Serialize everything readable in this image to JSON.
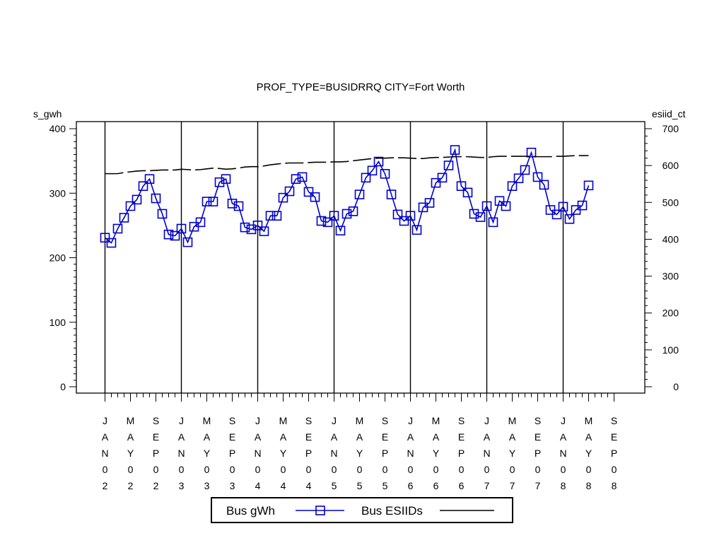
{
  "chart_data": {
    "type": "line",
    "title": "PROF_TYPE=BUSIDRRQ CITY=Fort Worth",
    "ylabel_left": "s_gwh",
    "ylabel_right": "esiid_ct",
    "ylim_left": [
      0,
      400
    ],
    "yticks_left": [
      0,
      100,
      200,
      300,
      400
    ],
    "ylim_right": [
      0,
      700
    ],
    "yticks_right": [
      0,
      100,
      200,
      300,
      400,
      500,
      600,
      700
    ],
    "x_start": "2002-01",
    "x_end": "2008-09",
    "x_tick_labels": [
      "JAN02",
      "MAY02",
      "SEP02",
      "JAN03",
      "MAY03",
      "SEP03",
      "JAN04",
      "MAY04",
      "SEP04",
      "JAN05",
      "MAY05",
      "SEP05",
      "JAN06",
      "MAY06",
      "SEP06",
      "JAN07",
      "MAY07",
      "SEP07",
      "JAN08",
      "MAY08",
      "SEP08"
    ],
    "year_reference_lines": [
      "2002-01",
      "2003-01",
      "2004-01",
      "2005-01",
      "2006-01",
      "2007-01",
      "2008-01"
    ],
    "grid": false,
    "legend_position": "bottom",
    "series": [
      {
        "name": "Bus gWh",
        "axis": "left",
        "color": "#0000cc",
        "marker": "square",
        "values": [
          231,
          223,
          245,
          262,
          280,
          290,
          311,
          322,
          292,
          268,
          236,
          234,
          245,
          224,
          248,
          255,
          287,
          287,
          317,
          322,
          284,
          280,
          247,
          244,
          250,
          241,
          265,
          265,
          293,
          303,
          322,
          325,
          302,
          294,
          257,
          255,
          265,
          242,
          268,
          272,
          298,
          324,
          335,
          349,
          330,
          298,
          267,
          257,
          265,
          243,
          278,
          285,
          316,
          324,
          343,
          367,
          311,
          301,
          268,
          263,
          280,
          255,
          288,
          280,
          311,
          323,
          336,
          363,
          325,
          313,
          274,
          267,
          279,
          260,
          274,
          281,
          312
        ]
      },
      {
        "name": "Bus ESIIDs",
        "axis": "right",
        "color": "#000000",
        "marker": "none",
        "values": [
          578,
          578,
          578,
          581,
          583,
          585,
          586,
          586,
          587,
          588,
          588,
          588,
          590,
          589,
          588,
          589,
          591,
          593,
          592,
          590,
          591,
          593,
          596,
          597,
          597,
          599,
          602,
          604,
          606,
          607,
          607,
          607,
          608,
          609,
          609,
          609,
          610,
          610,
          611,
          613,
          615,
          617,
          619,
          620,
          620,
          621,
          621,
          621,
          620,
          619,
          619,
          621,
          622,
          622,
          623,
          624,
          624,
          624,
          623,
          622,
          622,
          624,
          625,
          625,
          625,
          625,
          625,
          625,
          624,
          624,
          624,
          625,
          625,
          626,
          627,
          627,
          627
        ]
      }
    ]
  }
}
